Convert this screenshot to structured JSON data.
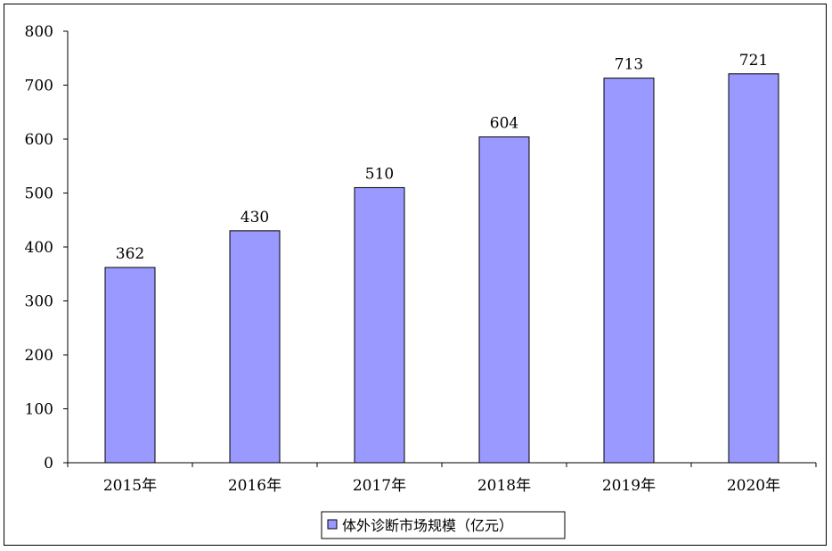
{
  "chart_data": {
    "type": "bar",
    "categories": [
      "2015年",
      "2016年",
      "2017年",
      "2018年",
      "2019年",
      "2020年"
    ],
    "series": [
      {
        "name": "体外诊断市场规模（亿元）",
        "values": [
          362,
          430,
          510,
          604,
          713,
          721
        ],
        "color": "#9999ff"
      }
    ],
    "data_labels": [
      "362",
      "430",
      "510",
      "604",
      "713",
      "721"
    ],
    "yticks": [
      "0",
      "100",
      "200",
      "300",
      "400",
      "500",
      "600",
      "700",
      "800"
    ],
    "ylim": [
      0,
      800
    ],
    "grid": false,
    "legend_position": "bottom",
    "title": "",
    "xlabel": "",
    "ylabel": ""
  }
}
